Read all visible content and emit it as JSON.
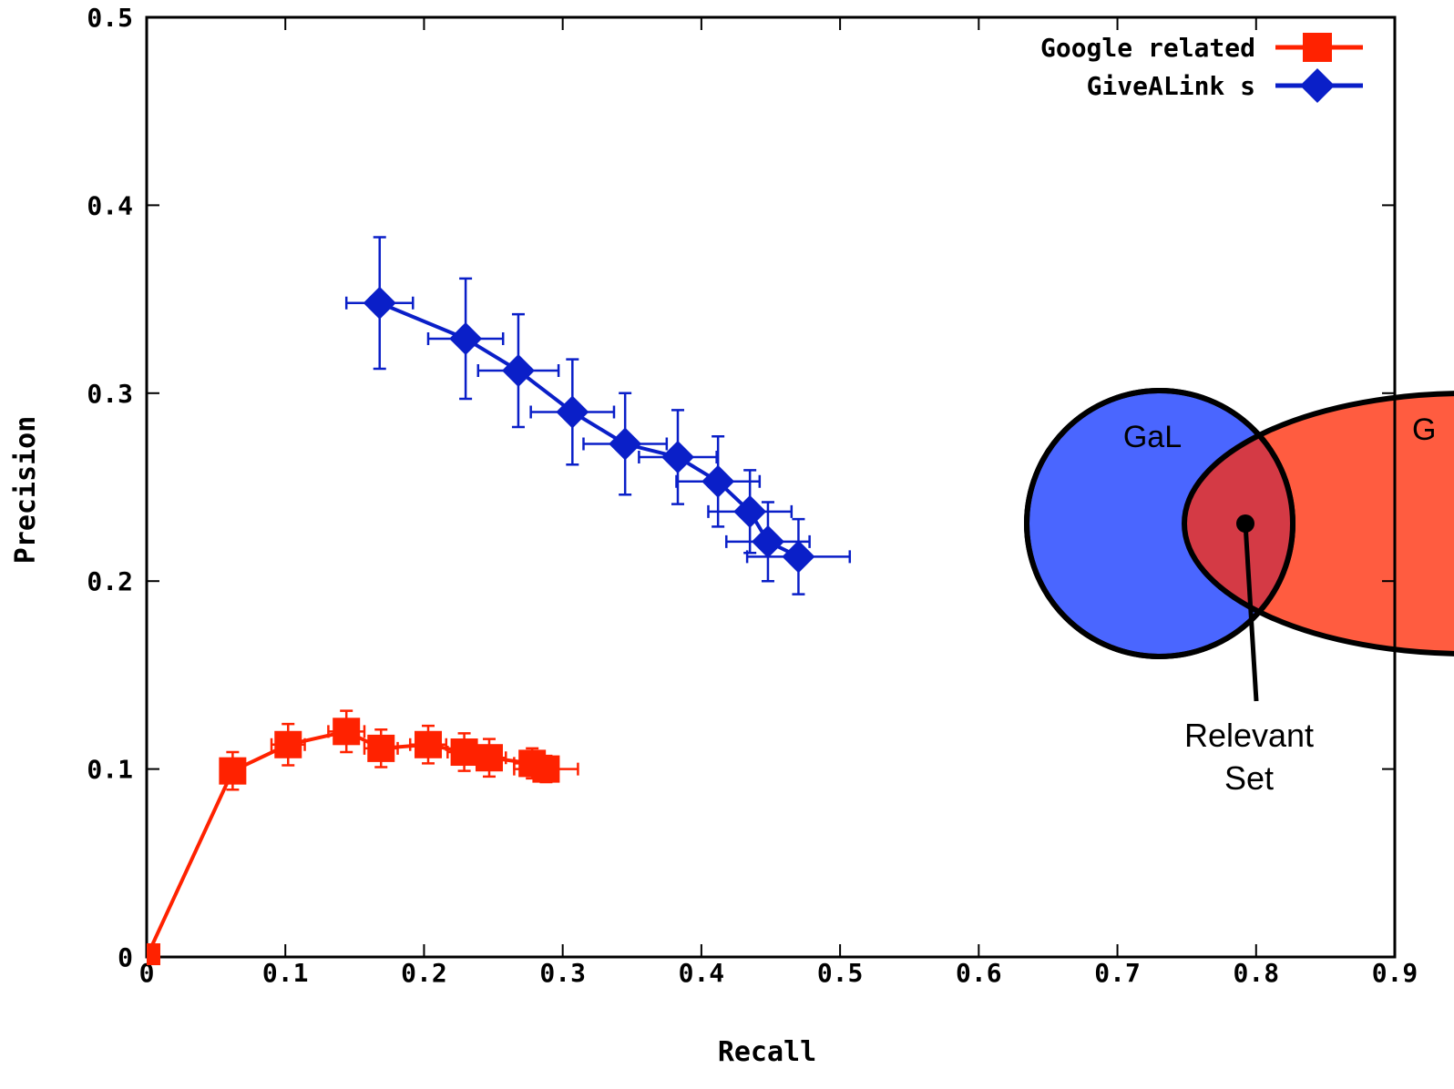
{
  "chart_data": {
    "type": "line",
    "title": "",
    "xlabel": "Recall",
    "ylabel": "Precision",
    "xlim": [
      0,
      0.9
    ],
    "ylim": [
      0,
      0.5
    ],
    "x_ticks": [
      "0",
      "0.1",
      "0.2",
      "0.3",
      "0.4",
      "0.5",
      "0.6",
      "0.7",
      "0.8",
      "0.9"
    ],
    "y_ticks": [
      "0",
      "0.1",
      "0.2",
      "0.3",
      "0.4",
      "0.5"
    ],
    "grid": false,
    "legend_position": "top-right",
    "series": [
      {
        "name": "Google related",
        "color": "#ff2200",
        "marker": "square",
        "points": [
          {
            "x": 0.0,
            "y": 0.0,
            "xerr": 0.0,
            "yerr": 0.0
          },
          {
            "x": 0.062,
            "y": 0.099,
            "xerr": 0.0,
            "yerr": 0.01
          },
          {
            "x": 0.102,
            "y": 0.113,
            "xerr": 0.012,
            "yerr": 0.011
          },
          {
            "x": 0.144,
            "y": 0.12,
            "xerr": 0.013,
            "yerr": 0.011
          },
          {
            "x": 0.169,
            "y": 0.111,
            "xerr": 0.012,
            "yerr": 0.01
          },
          {
            "x": 0.203,
            "y": 0.113,
            "xerr": 0.013,
            "yerr": 0.01
          },
          {
            "x": 0.229,
            "y": 0.109,
            "xerr": 0.012,
            "yerr": 0.01
          },
          {
            "x": 0.247,
            "y": 0.106,
            "xerr": 0.012,
            "yerr": 0.01
          },
          {
            "x": 0.278,
            "y": 0.103,
            "xerr": 0.013,
            "yerr": 0.008
          },
          {
            "x": 0.288,
            "y": 0.1,
            "xerr": 0.023,
            "yerr": 0.007
          }
        ]
      },
      {
        "name": "GiveALink s",
        "color": "#0a1fc8",
        "marker": "diamond",
        "points": [
          {
            "x": 0.168,
            "y": 0.348,
            "xerr": 0.024,
            "yerr": 0.035
          },
          {
            "x": 0.23,
            "y": 0.329,
            "xerr": 0.027,
            "yerr": 0.032
          },
          {
            "x": 0.268,
            "y": 0.312,
            "xerr": 0.029,
            "yerr": 0.03
          },
          {
            "x": 0.307,
            "y": 0.29,
            "xerr": 0.03,
            "yerr": 0.028
          },
          {
            "x": 0.345,
            "y": 0.273,
            "xerr": 0.03,
            "yerr": 0.027
          },
          {
            "x": 0.383,
            "y": 0.266,
            "xerr": 0.028,
            "yerr": 0.025
          },
          {
            "x": 0.412,
            "y": 0.253,
            "xerr": 0.03,
            "yerr": 0.024
          },
          {
            "x": 0.435,
            "y": 0.237,
            "xerr": 0.03,
            "yerr": 0.022
          },
          {
            "x": 0.448,
            "y": 0.221,
            "xerr": 0.03,
            "yerr": 0.021
          },
          {
            "x": 0.47,
            "y": 0.213,
            "xerr": 0.037,
            "yerr": 0.02
          }
        ]
      }
    ],
    "annotations": {
      "venn_left_label": "GaL",
      "venn_right_label": "G",
      "venn_left_color": "#4a66ff",
      "venn_right_color": "#ff5c40",
      "venn_overlap_color": "#d43a45",
      "pointer_label_line1": "Relevant",
      "pointer_label_line2": "Set"
    }
  }
}
